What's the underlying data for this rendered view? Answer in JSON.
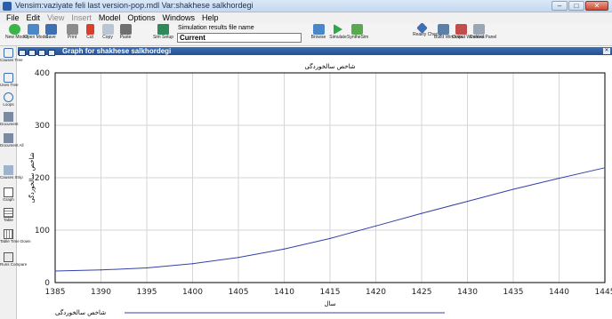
{
  "window": {
    "title": "Vensim:vaziyate feli last version-pop.mdl Var:shakhese salkhordegi",
    "buttons": {
      "minimize": "–",
      "maximize": "□",
      "close": "✕"
    }
  },
  "menu": {
    "items": [
      {
        "label": "File",
        "enabled": true
      },
      {
        "label": "Edit",
        "enabled": true
      },
      {
        "label": "View",
        "enabled": false
      },
      {
        "label": "Insert",
        "enabled": false
      },
      {
        "label": "Model",
        "enabled": true
      },
      {
        "label": "Options",
        "enabled": true
      },
      {
        "label": "Windows",
        "enabled": true
      },
      {
        "label": "Help",
        "enabled": true
      }
    ]
  },
  "toolbar": {
    "new_model": "New Model",
    "open_model": "Open Model",
    "save": "Save",
    "print": "Print",
    "cut": "Cut",
    "copy": "Copy",
    "paste": "Paste",
    "sim_setup": "Sim Setup",
    "sim_results_label": "Simulation results file name",
    "sim_results_value": "Current",
    "browse": "Browse",
    "simulate": "Simulate",
    "synthesim": "SyntheSim",
    "reality_checks": "Reality Checks",
    "build_windows": "Build Windows",
    "output_windows": "Output Windows",
    "control_panel": "Control Panel"
  },
  "leftbar": {
    "causes_tree": "Causes Tree",
    "uses_tree": "Uses Tree",
    "loops": "Loops",
    "document": "Document",
    "document_all": "Document All",
    "causes_strip": "Causes Strip",
    "graph": "Graph",
    "table": "Table",
    "table_time_down": "Table Time Down",
    "runs_compare": "Runs Compare"
  },
  "graph_window": {
    "title": "Graph for shakhese salkhordegi"
  },
  "chart_data": {
    "type": "line",
    "title": "شاخص سالخوردگی",
    "xlabel": "سال",
    "ylabel": "شاخص سالخوردگی",
    "xlim": [
      1385,
      1445
    ],
    "ylim": [
      0,
      400
    ],
    "x_ticks": [
      1385,
      1390,
      1395,
      1400,
      1405,
      1410,
      1415,
      1420,
      1425,
      1430,
      1435,
      1440,
      1445
    ],
    "y_ticks": [
      0,
      100,
      200,
      300,
      400
    ],
    "grid": true,
    "legend": "bottom-left",
    "series": [
      {
        "name": "شاخص سالخوردگی",
        "color": "#3440a8",
        "x": [
          1385,
          1390,
          1395,
          1400,
          1405,
          1410,
          1415,
          1420,
          1425,
          1430,
          1435,
          1440,
          1445
        ],
        "y": [
          22,
          24,
          28,
          36,
          48,
          64,
          84,
          108,
          132,
          155,
          178,
          199,
          219
        ]
      }
    ]
  }
}
